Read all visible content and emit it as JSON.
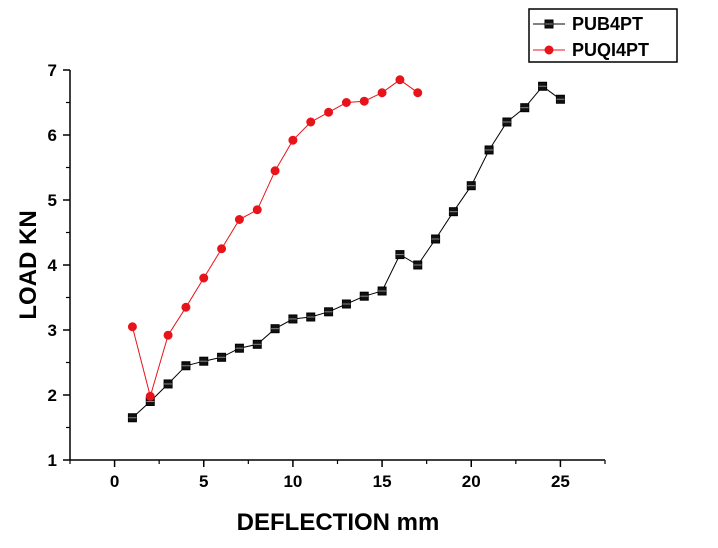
{
  "chart_data": {
    "type": "line",
    "xlabel": "DEFLECTION mm",
    "ylabel": "LOAD  KN",
    "xlim": [
      -2.5,
      27.5
    ],
    "ylim": [
      1,
      7
    ],
    "xticks": [
      0,
      5,
      10,
      15,
      20,
      25
    ],
    "yticks": [
      1,
      2,
      3,
      4,
      5,
      6,
      7
    ],
    "grid": false,
    "legend_position": "top-right",
    "series": [
      {
        "name": "PUB4PT",
        "color": "#000000",
        "marker": "square",
        "x": [
          1,
          2,
          3,
          4,
          5,
          6,
          7,
          8,
          9,
          10,
          11,
          12,
          13,
          14,
          15,
          16,
          17,
          18,
          19,
          20,
          21,
          22,
          23,
          24,
          25
        ],
        "y": [
          1.65,
          1.9,
          2.17,
          2.45,
          2.52,
          2.58,
          2.72,
          2.78,
          3.02,
          3.17,
          3.2,
          3.28,
          3.4,
          3.52,
          3.6,
          4.16,
          4.0,
          4.4,
          4.82,
          5.22,
          5.77,
          6.2,
          6.42,
          6.75,
          6.55
        ]
      },
      {
        "name": "PUQI4PT",
        "color": "#e8141b",
        "marker": "circle",
        "x": [
          1,
          2,
          3,
          4,
          5,
          6,
          7,
          8,
          9,
          10,
          11,
          12,
          13,
          14,
          15,
          16,
          17
        ],
        "y": [
          3.05,
          1.98,
          2.92,
          3.35,
          3.8,
          4.25,
          4.7,
          4.85,
          5.45,
          5.92,
          6.2,
          6.35,
          6.5,
          6.52,
          6.65,
          6.85,
          6.65
        ]
      }
    ]
  }
}
